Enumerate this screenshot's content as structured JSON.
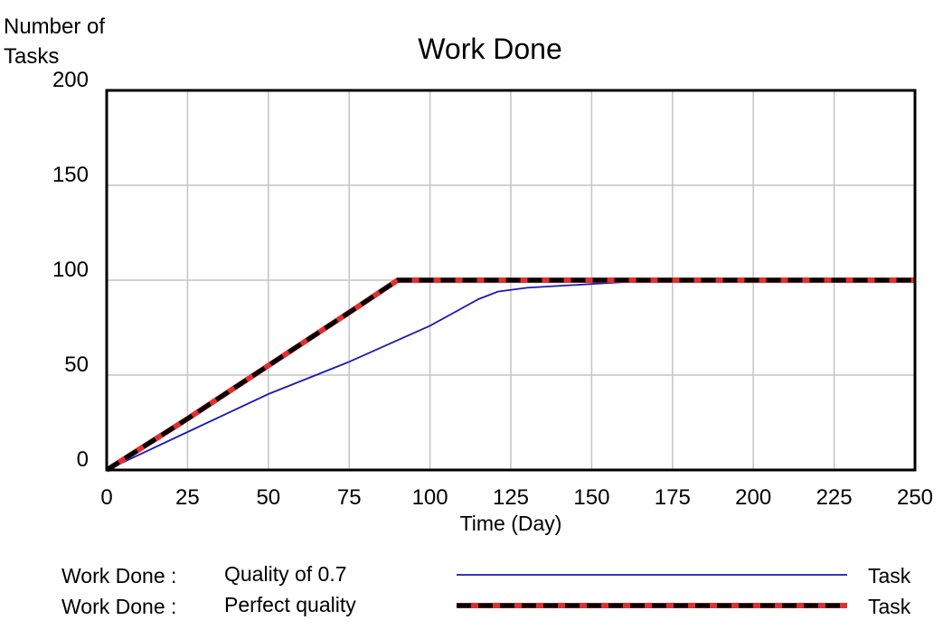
{
  "chart_data": {
    "type": "line",
    "title": "Work Done",
    "ylabel": [
      "Number of",
      "Tasks"
    ],
    "xlabel": "Time (Day)",
    "xlim": [
      0,
      250
    ],
    "ylim": [
      0,
      200
    ],
    "x_ticks": [
      0,
      25,
      50,
      75,
      100,
      125,
      150,
      175,
      200,
      225,
      250
    ],
    "y_ticks": [
      0,
      50,
      100,
      150,
      200
    ],
    "grid": true,
    "legend_position": "bottom",
    "series": [
      {
        "name": "Quality of 0.7",
        "variable": "Work Done :",
        "unit": "Task",
        "color": "#1a1ab5",
        "style": "solid",
        "points": [
          [
            0,
            0
          ],
          [
            25,
            20
          ],
          [
            50,
            40
          ],
          [
            75,
            57
          ],
          [
            100,
            76
          ],
          [
            115,
            90
          ],
          [
            121,
            94
          ],
          [
            130,
            96
          ],
          [
            150,
            98
          ],
          [
            160,
            99
          ],
          [
            250,
            99.5
          ]
        ]
      },
      {
        "name": "Perfect quality",
        "variable": "Work Done :",
        "unit": "Task",
        "color": "#000000",
        "accent_color": "#e03030",
        "style": "dashed",
        "points": [
          [
            0,
            0
          ],
          [
            25,
            27
          ],
          [
            50,
            55
          ],
          [
            75,
            83
          ],
          [
            90,
            100
          ],
          [
            250,
            100
          ]
        ]
      }
    ]
  }
}
